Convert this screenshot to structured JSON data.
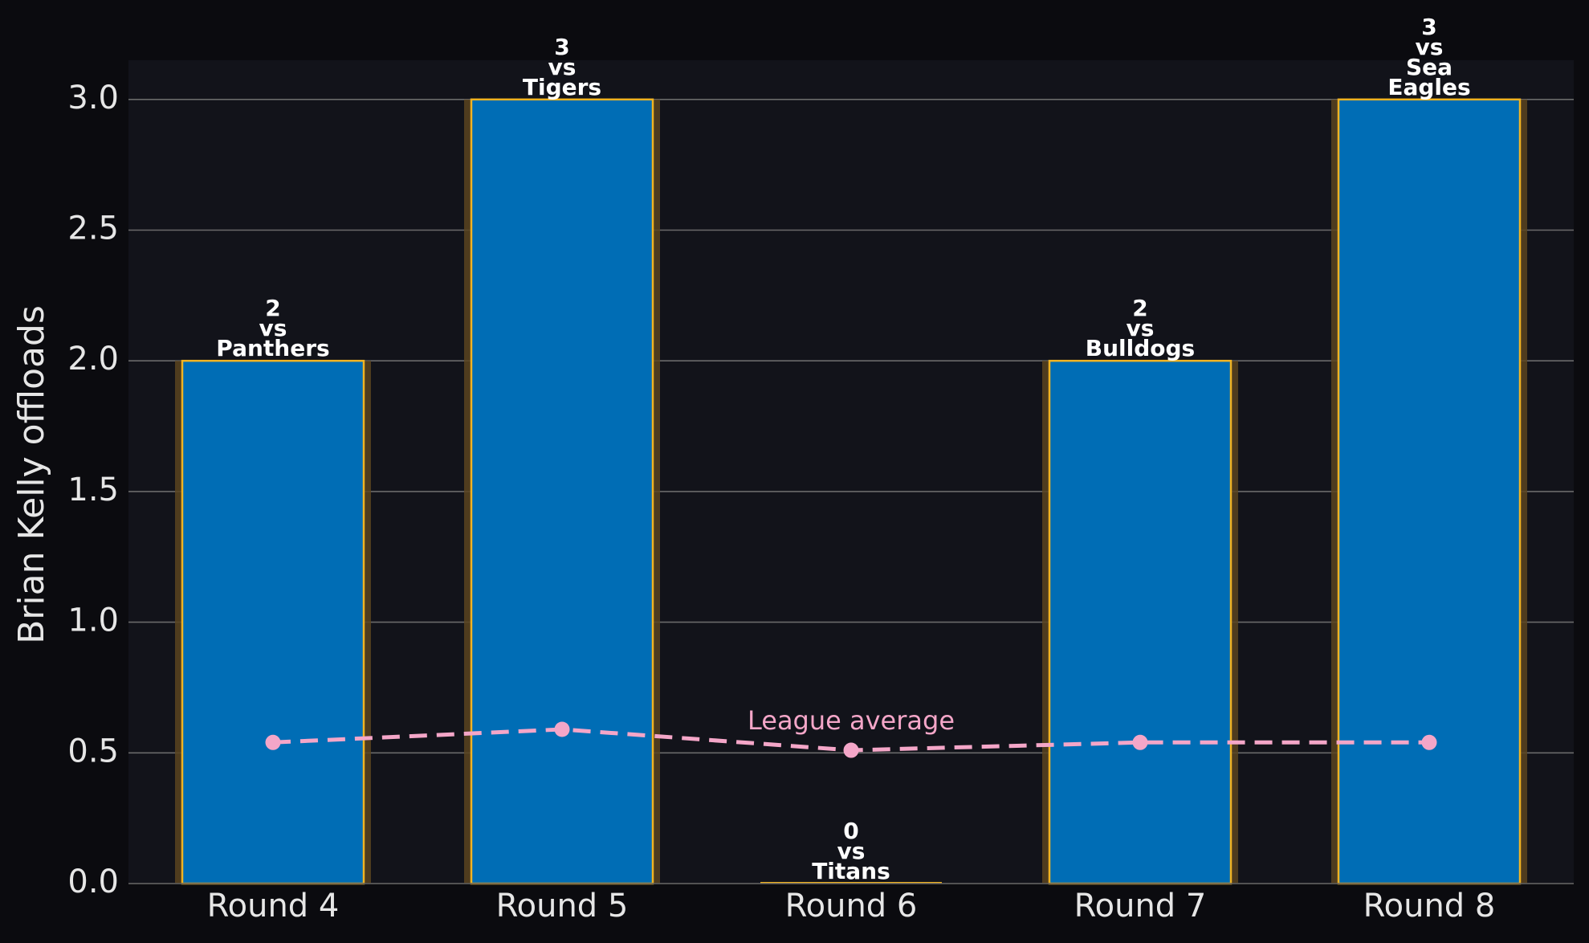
{
  "chart_data": {
    "type": "bar",
    "categories": [
      "Round 4",
      "Round 5",
      "Round 6",
      "Round 7",
      "Round 8"
    ],
    "values": [
      2,
      3,
      0,
      2,
      3
    ],
    "opponents": [
      "Panthers",
      "Tigers",
      "Titans",
      "Bulldogs",
      "Sea Eagles"
    ],
    "bar_labels": [
      [
        "2",
        "vs",
        "Panthers"
      ],
      [
        "3",
        "vs",
        "Tigers"
      ],
      [
        "0",
        "vs",
        "Titans"
      ],
      [
        "2",
        "vs",
        "Bulldogs"
      ],
      [
        "3",
        "vs",
        "Sea",
        "Eagles"
      ]
    ],
    "series": [
      {
        "name": "League average",
        "type": "line",
        "style": "dashed",
        "values": [
          0.54,
          0.59,
          0.51,
          0.54,
          0.54
        ]
      }
    ],
    "average_label": "League average",
    "title": "",
    "xlabel": "",
    "ylabel": "Brian Kelly offloads",
    "ylim": [
      0,
      3.15
    ],
    "yticks": [
      "0.0",
      "0.5",
      "1.0",
      "1.5",
      "2.0",
      "2.5",
      "3.0"
    ],
    "ytick_values": [
      0,
      0.5,
      1.0,
      1.5,
      2.0,
      2.5,
      3.0
    ],
    "grid": "horizontal",
    "legend": "none",
    "colors": {
      "page_background": "#0b0b0f",
      "plot_background": "#12131a",
      "bar_fill": "#006db5",
      "bar_edge": "#f0b323",
      "bar_glow": "#5a4420",
      "grid": "#6a6a6a",
      "average_line": "#f4a6c8",
      "text": "#e6e6e6"
    }
  }
}
